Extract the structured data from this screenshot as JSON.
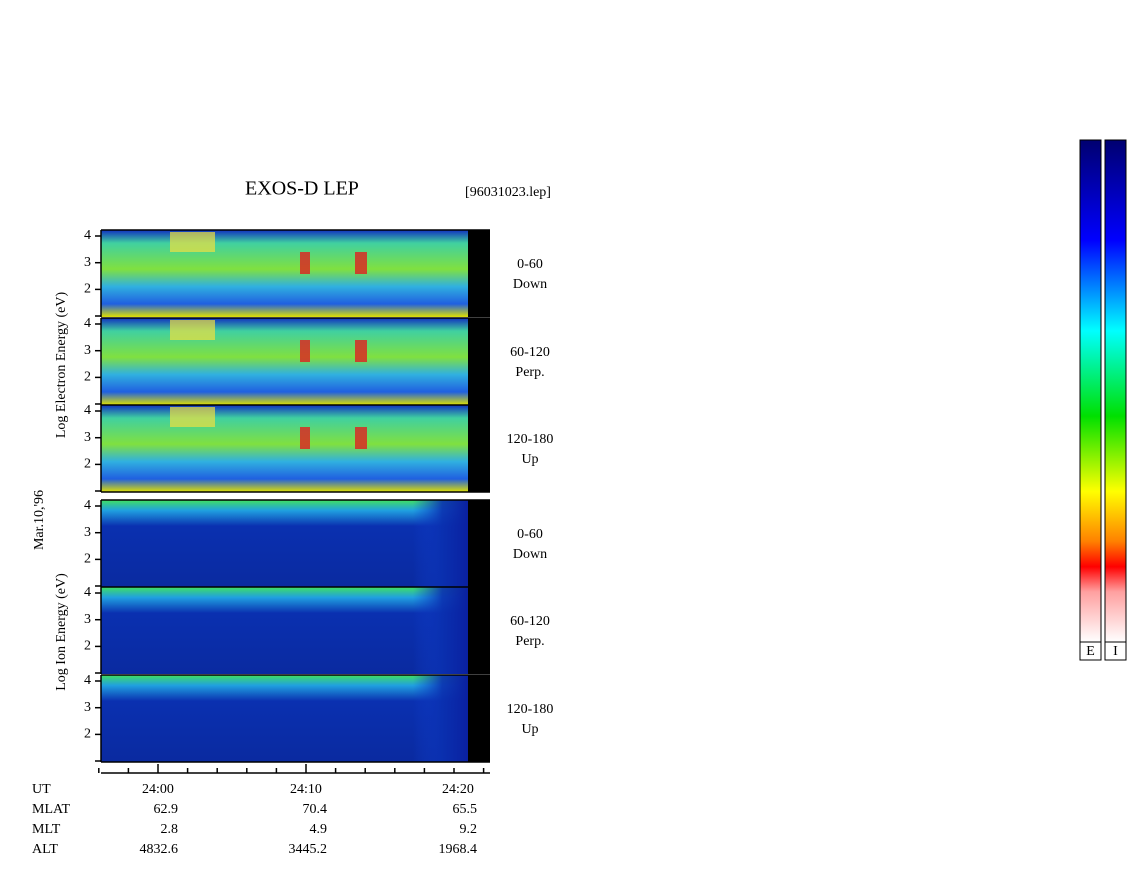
{
  "title": "EXOS-D LEP",
  "file": "[96031023.lep]",
  "electron_label": "Log Electron Energy (eV)",
  "ion_label": "Log Ion Energy (eV)",
  "date": "Mar.10,'96",
  "panels": [
    {
      "species": "electron",
      "range": "0-60",
      "direction": "Down",
      "yticks": [
        4,
        3,
        2
      ]
    },
    {
      "species": "electron",
      "range": "60-120",
      "direction": "Perp.",
      "yticks": [
        4,
        3,
        2
      ]
    },
    {
      "species": "electron",
      "range": "120-180",
      "direction": "Up",
      "yticks": [
        4,
        3,
        2
      ]
    },
    {
      "species": "ion",
      "range": "0-60",
      "direction": "Down",
      "yticks": [
        4,
        3,
        2
      ]
    },
    {
      "species": "ion",
      "range": "60-120",
      "direction": "Perp.",
      "yticks": [
        4,
        3,
        2
      ]
    },
    {
      "species": "ion",
      "range": "120-180",
      "direction": "Up",
      "yticks": [
        4,
        3,
        2
      ]
    }
  ],
  "table": {
    "rows": [
      [
        "UT",
        "24:00",
        "24:10",
        "24:20"
      ],
      [
        "MLAT",
        62.9,
        70.4,
        65.5
      ],
      [
        "MLT",
        2.8,
        4.9,
        9.2
      ],
      [
        "ALT",
        4832.6,
        3445.2,
        1968.4
      ]
    ]
  },
  "colorbars": [
    "E",
    "I"
  ]
}
